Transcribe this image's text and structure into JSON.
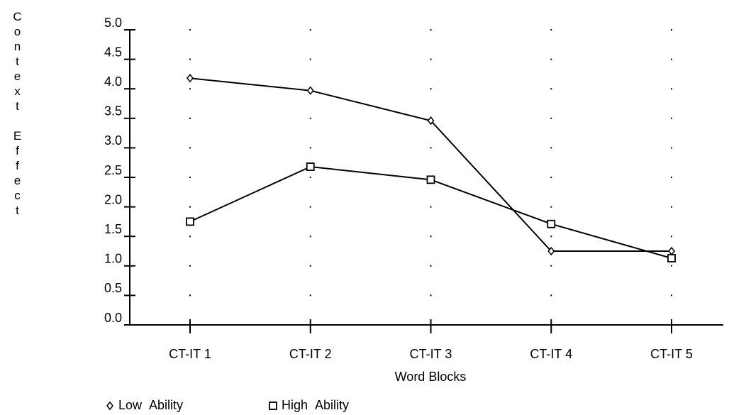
{
  "chart_data": {
    "type": "line",
    "y_label": "Context Effect",
    "x_label": "Word Blocks",
    "categories": [
      "CT-IT 1",
      "CT-IT 2",
      "CT-IT 3",
      "CT-IT 4",
      "CT-IT 5"
    ],
    "series": [
      {
        "name": "Low Ability",
        "color": "#000000",
        "marker": "diamond",
        "values": [
          4.18,
          3.97,
          3.46,
          1.25,
          1.25
        ]
      },
      {
        "name": "High Ability",
        "color": "#000000",
        "marker": "square",
        "values": [
          1.75,
          2.68,
          2.46,
          1.71,
          1.13
        ]
      }
    ],
    "ylim": [
      0,
      5
    ],
    "yticks": [
      {
        "value": 0,
        "label": "0.0"
      },
      0.5,
      {
        "value": 1,
        "label": "1.0"
      },
      1.5,
      {
        "value": 2,
        "label": "2.0"
      },
      2.5,
      {
        "value": 3,
        "label": "3.0"
      },
      3.5,
      {
        "value": 4,
        "label": "4.0"
      },
      4.5,
      {
        "value": 5,
        "label": "5.0"
      }
    ],
    "grid": true,
    "legend": "bottom-left"
  }
}
